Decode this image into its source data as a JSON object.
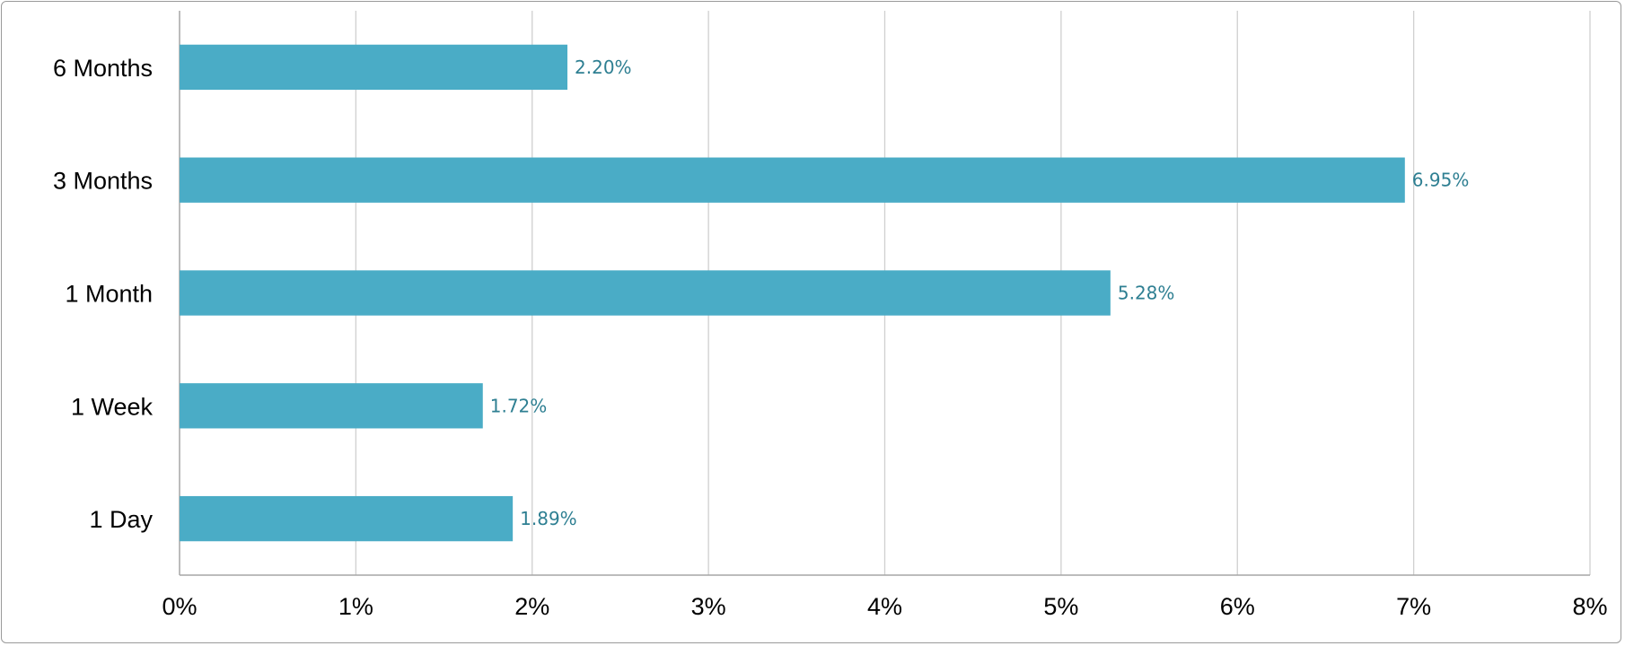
{
  "chart_data": {
    "type": "bar",
    "orientation": "horizontal",
    "categories": [
      "6 Months",
      "3 Months",
      "1 Month",
      "1 Week",
      "1 Day"
    ],
    "values": [
      2.2,
      6.95,
      5.28,
      1.72,
      1.89
    ],
    "data_labels": [
      "2.20%",
      "6.95%",
      "5.28%",
      "1.72%",
      "1.89%"
    ],
    "x_ticks": [
      "0%",
      "1%",
      "2%",
      "3%",
      "4%",
      "5%",
      "6%",
      "7%",
      "8%"
    ],
    "xlim": [
      0,
      8
    ],
    "grid": "vertical",
    "legend": "none",
    "title": "",
    "xlabel": "",
    "ylabel": "",
    "colors": {
      "bar": "#4aacc6",
      "data_label": "#2e7f92",
      "grid": "#d0d0d0",
      "axis": "#a6a6a6"
    }
  }
}
